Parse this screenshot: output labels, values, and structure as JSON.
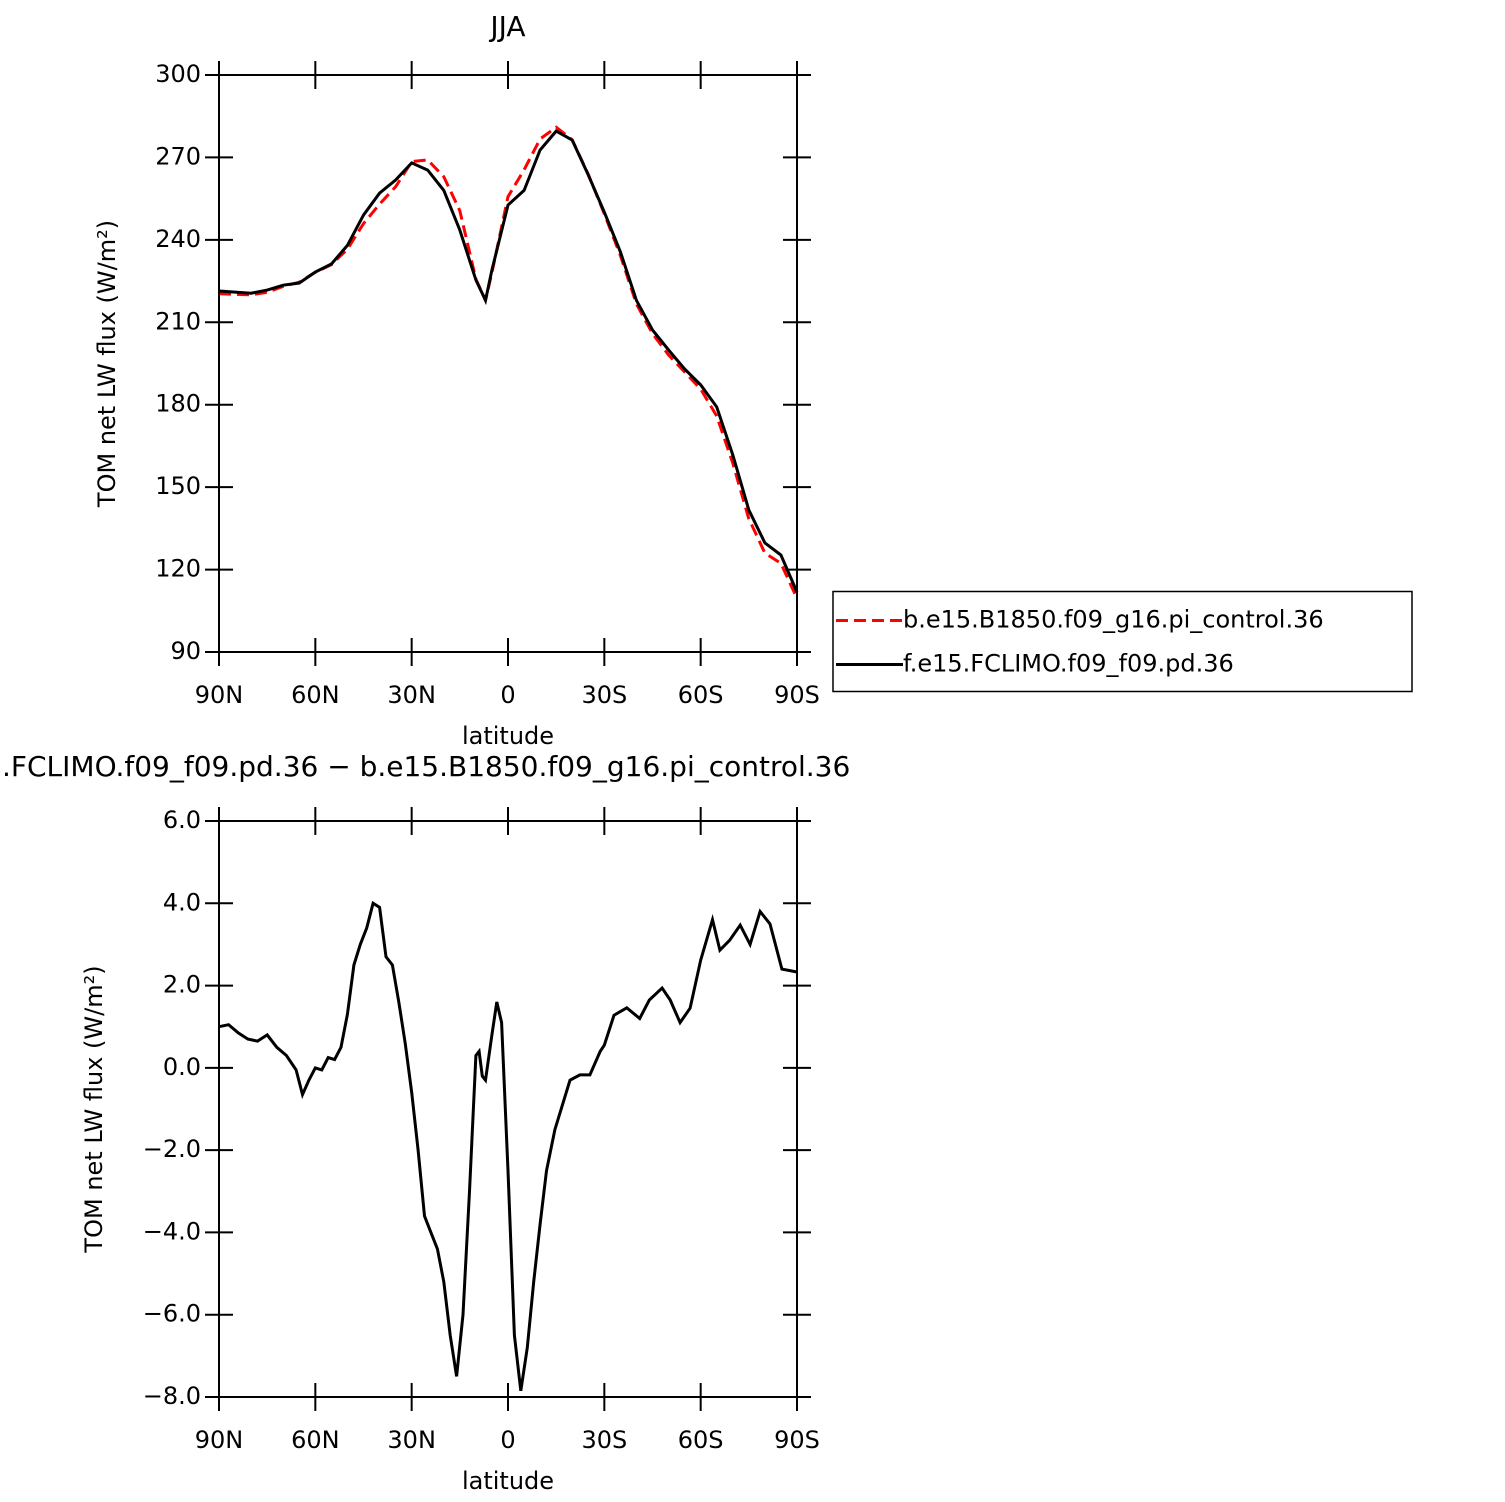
{
  "chart_data": [
    {
      "type": "line",
      "title": "JJA",
      "xlabel": "latitude",
      "ylabel": "TOM net LW flux (W/m²)",
      "xlim": [
        90,
        -90
      ],
      "xticks": [
        {
          "value": 90,
          "label": "90N"
        },
        {
          "value": 60,
          "label": "60N"
        },
        {
          "value": 30,
          "label": "30N"
        },
        0,
        {
          "value": -30,
          "label": "30S"
        },
        {
          "value": -60,
          "label": "60S"
        },
        {
          "value": -90,
          "label": "90S"
        }
      ],
      "ylim": [
        90,
        300
      ],
      "yticks": [
        90,
        120,
        150,
        180,
        210,
        240,
        270,
        300
      ],
      "legend": "right",
      "x": [
        90,
        85,
        80,
        75,
        70,
        65,
        60,
        55,
        50,
        45,
        40,
        35,
        30,
        25,
        20,
        15,
        10,
        7,
        5,
        0,
        -5,
        -10,
        -15,
        -20,
        -25,
        -30,
        -35,
        -40,
        -45,
        -50,
        -55,
        -60,
        -65,
        -70,
        -75,
        -80,
        -85,
        -90
      ],
      "series": [
        {
          "name": "b.e15.B1850.f09_g16.pi_control.36",
          "color": "#ff0000",
          "dash": true,
          "values": [
            220.4,
            220.2,
            220,
            220.9,
            223.1,
            224.6,
            228.2,
            231,
            236.6,
            245.9,
            253,
            259.3,
            268.5,
            269.1,
            263,
            250.6,
            225.7,
            218,
            228,
            255.7,
            265.5,
            276.7,
            281,
            276.4,
            263.8,
            249.5,
            234.3,
            216.7,
            205.9,
            198.1,
            191.9,
            185.7,
            175.9,
            158.7,
            138.5,
            126,
            122.3,
            109.5
          ]
        },
        {
          "name": "f.e15.FCLIMO.f09_f09.pd.36",
          "color": "#000000",
          "dash": false,
          "values": [
            221.4,
            221,
            220.6,
            221.7,
            223.5,
            224.3,
            228.3,
            231.2,
            238,
            249,
            257,
            261.8,
            268,
            265.4,
            258,
            243.6,
            225.4,
            218,
            229,
            252.7,
            258,
            272.7,
            279.6,
            276.3,
            263.6,
            250.1,
            235.6,
            218,
            207.2,
            199.9,
            193,
            187.2,
            179.2,
            161.7,
            141.7,
            129.7,
            125.3,
            111.8
          ]
        }
      ]
    },
    {
      "type": "line",
      "title": ".FCLIMO.f09_f09.pd.36 − b.e15.B1850.f09_g16.pi_control.36",
      "xlabel": "latitude",
      "ylabel": "TOM net LW flux (W/m²)",
      "xlim": [
        90,
        -90
      ],
      "xticks": [
        {
          "value": 90,
          "label": "90N"
        },
        {
          "value": 60,
          "label": "60N"
        },
        {
          "value": 30,
          "label": "30N"
        },
        0,
        {
          "value": -30,
          "label": "30S"
        },
        {
          "value": -60,
          "label": "60S"
        },
        {
          "value": -90,
          "label": "90S"
        }
      ],
      "ylim": [
        -8,
        6
      ],
      "yticks": [
        {
          "value": -8,
          "label": "−8.0"
        },
        {
          "value": -6,
          "label": "−6.0"
        },
        {
          "value": -4,
          "label": "−4.0"
        },
        {
          "value": -2,
          "label": "−2.0"
        },
        {
          "value": 0,
          "label": "0.0"
        },
        {
          "value": 2,
          "label": "2.0"
        },
        {
          "value": 4,
          "label": "4.0"
        },
        {
          "value": 6,
          "label": "6.0"
        }
      ],
      "x": [
        90,
        87,
        84,
        81,
        78,
        75,
        72,
        69,
        66,
        64,
        62,
        60,
        58,
        56,
        54,
        52,
        50,
        48,
        46,
        44,
        42,
        40,
        38,
        36,
        34,
        32,
        30,
        28,
        26,
        24,
        22,
        20,
        18,
        16,
        14,
        12,
        10,
        9,
        8,
        7,
        5,
        3.5,
        2,
        0,
        -2,
        -4,
        -6,
        -8,
        -10,
        -12,
        -14.6,
        -19.3,
        -22.4,
        -25.5,
        -28.7,
        -30,
        -33,
        -37,
        -41,
        -44,
        -48,
        -50.5,
        -53.6,
        -56.7,
        -60,
        -63.7,
        -66,
        -69,
        -72.3,
        -75.4,
        -78.5,
        -81.6,
        -85.3,
        -90
      ],
      "series": [
        {
          "color": "#000000",
          "dash": false,
          "values": [
            1.0,
            1.05,
            0.85,
            0.7,
            0.65,
            0.8,
            0.5,
            0.3,
            -0.05,
            -0.65,
            -0.3,
            0.0,
            -0.05,
            0.25,
            0.2,
            0.5,
            1.3,
            2.5,
            3.0,
            3.4,
            4.0,
            3.9,
            2.7,
            2.5,
            1.6,
            0.6,
            -0.6,
            -2.0,
            -3.6,
            -4.0,
            -4.4,
            -5.2,
            -6.5,
            -7.5,
            -6.0,
            -3.0,
            0.3,
            0.4,
            -0.2,
            -0.3,
            0.8,
            1.6,
            1.1,
            -2.5,
            -6.5,
            -7.85,
            -6.8,
            -5.2,
            -3.8,
            -2.5,
            -1.5,
            -0.3,
            -0.17,
            -0.17,
            0.4,
            0.55,
            1.28,
            1.46,
            1.2,
            1.65,
            1.94,
            1.65,
            1.1,
            1.45,
            2.62,
            3.6,
            2.86,
            3.1,
            3.47,
            3.0,
            3.8,
            3.5,
            2.4,
            2.33
          ]
        }
      ]
    }
  ]
}
